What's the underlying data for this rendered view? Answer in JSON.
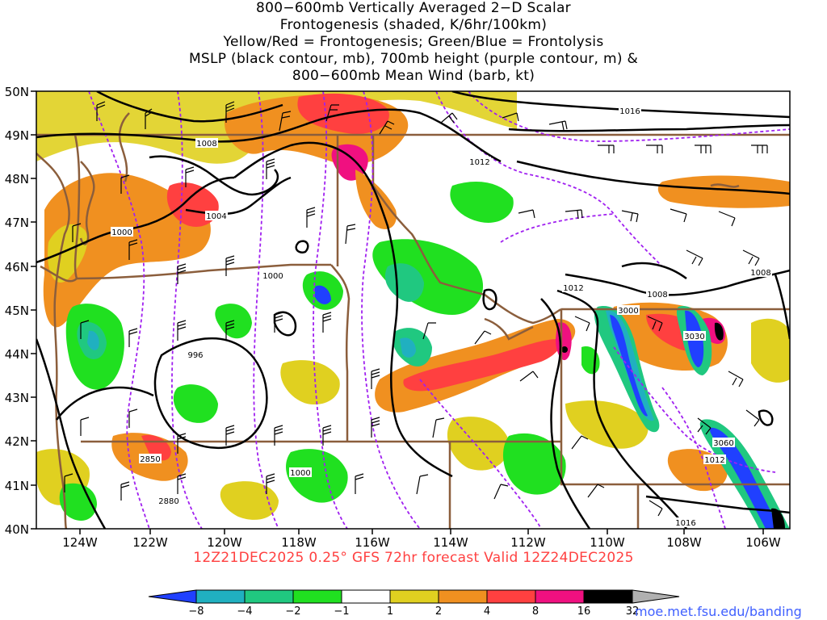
{
  "title": {
    "lines": [
      "800−600mb Vertically Averaged 2−D Scalar",
      "Frontogenesis (shaded, K/6hr/100km)",
      "Yellow/Red = Frontogenesis;  Green/Blue = Frontolysis",
      "MSLP (black contour, mb), 700mb height (purple contour, m) &",
      "800−600mb Mean Wind (barb, kt)"
    ]
  },
  "footer": "12Z21DEC2025 0.25° GFS 72hr forecast Valid 12Z24DEC2025",
  "credit": "moe.met.fsu.edu/banding",
  "map": {
    "lat_labels": [
      "50N",
      "49N",
      "48N",
      "47N",
      "46N",
      "45N",
      "44N",
      "43N",
      "42N",
      "41N",
      "40N"
    ],
    "lon_labels": [
      "124W",
      "122W",
      "120W",
      "118W",
      "116W",
      "114W",
      "112W",
      "110W",
      "108W",
      "106W"
    ],
    "mslp_labels": [
      "1016",
      "1012",
      "1008",
      "1004",
      "1000",
      "1000",
      "996",
      "1000",
      "1012",
      "1008",
      "1008",
      "1012",
      "1016"
    ],
    "height_labels": [
      "3000",
      "3030",
      "2850",
      "2880",
      "3060"
    ],
    "colors": {
      "mslp": "#000000",
      "height": "#a020f0",
      "borders": "#8b5e3c",
      "barbs": "#000000"
    }
  },
  "colorbar": {
    "labels": [
      "−8",
      "−4",
      "−2",
      "−1",
      "1",
      "2",
      "4",
      "8",
      "16",
      "32"
    ],
    "colors": [
      "#2040ff",
      "#20b0c0",
      "#20c880",
      "#20e020",
      "#ffffff",
      "#e0d020",
      "#f09020",
      "#ff4040",
      "#f01080",
      "#000000",
      "#b0b0b0"
    ]
  }
}
